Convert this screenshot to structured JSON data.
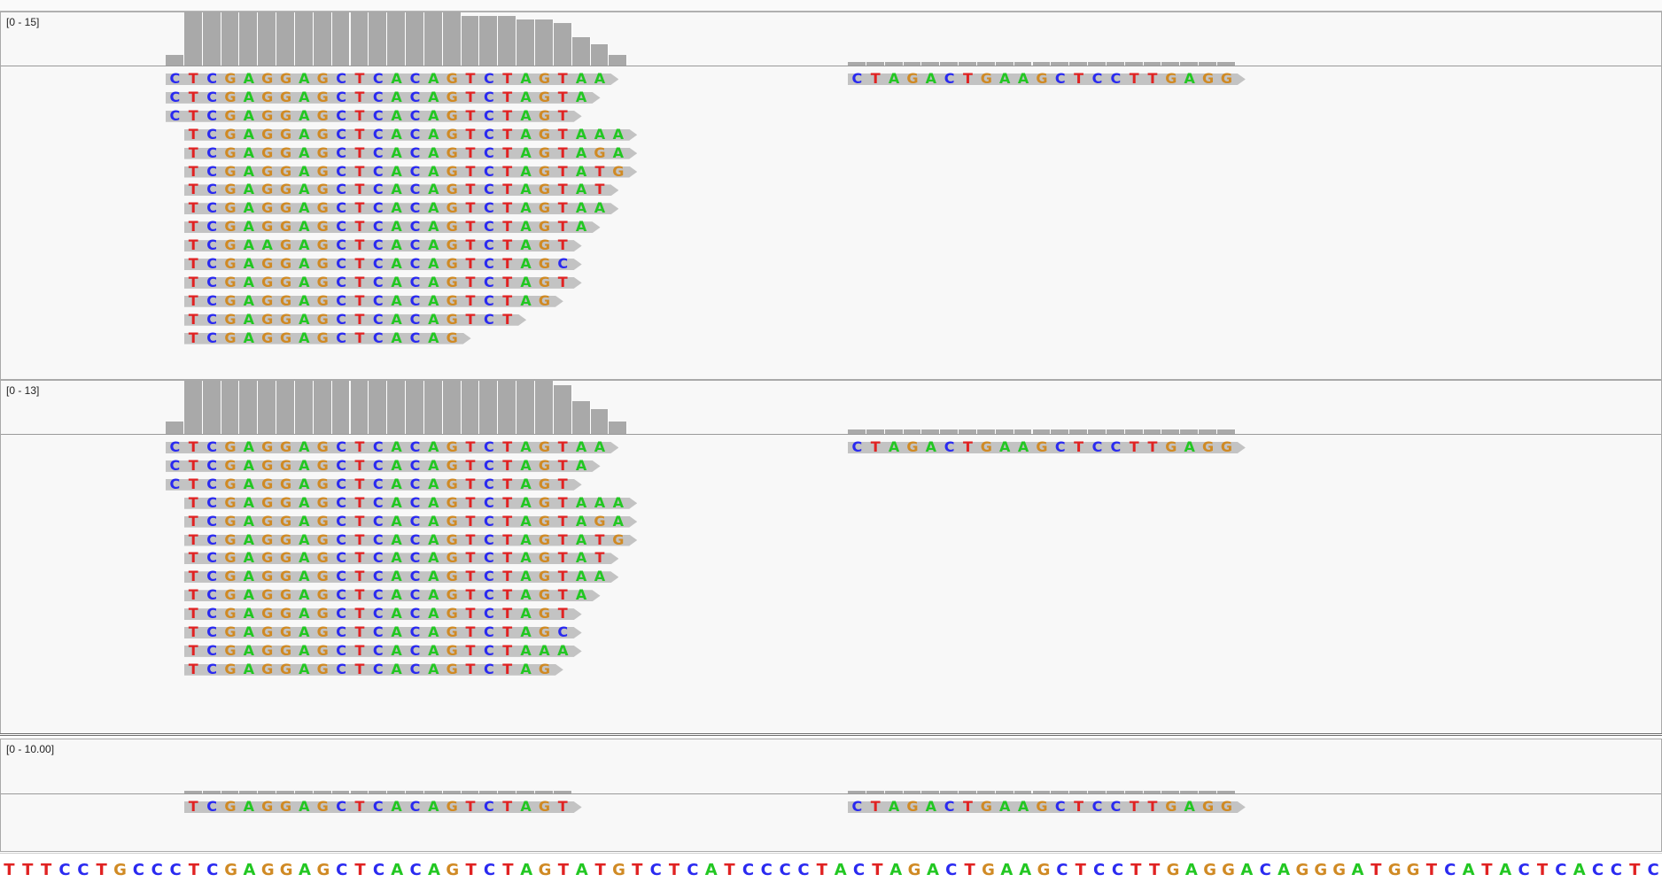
{
  "tracks": [
    {
      "range_label": "[0 - 15]",
      "reads_left": [
        {
          "seq": "CTCGAGGAGCTCACAGTCTAGTAA",
          "start": 0
        },
        {
          "seq": "CTCGAGGAGCTCACAGTCTAGTA",
          "start": 0
        },
        {
          "seq": "CTCGAGGAGCTCACAGTCTAGT",
          "start": 0
        },
        {
          "seq": "TCGAGGAGCTCACAGTCTAGTAAA",
          "start": 1
        },
        {
          "seq": "TCGAGGAGCTCACAGTCTAGTAGA",
          "start": 1
        },
        {
          "seq": "TCGAGGAGCTCACAGTCTAGTATG",
          "start": 1
        },
        {
          "seq": "TCGAGGAGCTCACAGTCTAGTAT",
          "start": 1
        },
        {
          "seq": "TCGAGGAGCTCACAGTCTAGTAA",
          "start": 1
        },
        {
          "seq": "TCGAGGAGCTCACAGTCTAGTA",
          "start": 1
        },
        {
          "seq": "TCGAAGAGCTCACAGTCTAGT",
          "start": 1
        },
        {
          "seq": "TCGAGGAGCTCACAGTCTAGC",
          "start": 1
        },
        {
          "seq": "TCGAGGAGCTCACAGTCTAGT",
          "start": 1
        },
        {
          "seq": "TCGAGGAGCTCACAGTCTAG",
          "start": 1
        },
        {
          "seq": "TCGAGGAGCTCACAGTCT",
          "start": 1
        },
        {
          "seq": "TCGAGGAGCTCACAG",
          "start": 1
        }
      ],
      "reads_right": [
        {
          "seq": "CTAGACTGAAGCTCCTTGAGG",
          "start": 0
        }
      ]
    },
    {
      "range_label": "[0 - 13]",
      "reads_left": [
        {
          "seq": "CTCGAGGAGCTCACAGTCTAGTAA",
          "start": 0
        },
        {
          "seq": "CTCGAGGAGCTCACAGTCTAGTA",
          "start": 0
        },
        {
          "seq": "CTCGAGGAGCTCACAGTCTAGT",
          "start": 0
        },
        {
          "seq": "TCGAGGAGCTCACAGTCTAGTAAA",
          "start": 1
        },
        {
          "seq": "TCGAGGAGCTCACAGTCTAGTAGA",
          "start": 1
        },
        {
          "seq": "TCGAGGAGCTCACAGTCTAGTATG",
          "start": 1
        },
        {
          "seq": "TCGAGGAGCTCACAGTCTAGTAT",
          "start": 1
        },
        {
          "seq": "TCGAGGAGCTCACAGTCTAGTAA",
          "start": 1
        },
        {
          "seq": "TCGAGGAGCTCACAGTCTAGTA",
          "start": 1
        },
        {
          "seq": "TCGAGGAGCTCACAGTCTAGT",
          "start": 1
        },
        {
          "seq": "TCGAGGAGCTCACAGTCTAGC",
          "start": 1
        },
        {
          "seq": "TCGAGGAGCTCACAGTCTAAA",
          "start": 1
        },
        {
          "seq": "TCGAGGAGCTCACAGTCTAG",
          "start": 1
        }
      ],
      "reads_right": [
        {
          "seq": "CTAGACTGAAGCTCCTTGAGG",
          "start": 0
        }
      ]
    },
    {
      "range_label": "[0 - 10.00]",
      "reads_left": [
        {
          "seq": "TCGAGGAGCTCACAGTCTAGT",
          "start": 1
        }
      ],
      "reads_right": [
        {
          "seq": "CTAGACTGAAGCTCCTTGAGG",
          "start": 0
        }
      ]
    }
  ],
  "reference": "TTTCCTGCCCTCGAGGAGCTCACAGTCTAGTATGTCTCATCCCCTACTAGACTGAAGCTCCTTGAGGACAGGGATGGTCATACTCACCTC",
  "colors": {
    "A": "#22c722",
    "C": "#2a2af0",
    "G": "#d08a24",
    "T": "#e02222"
  }
}
